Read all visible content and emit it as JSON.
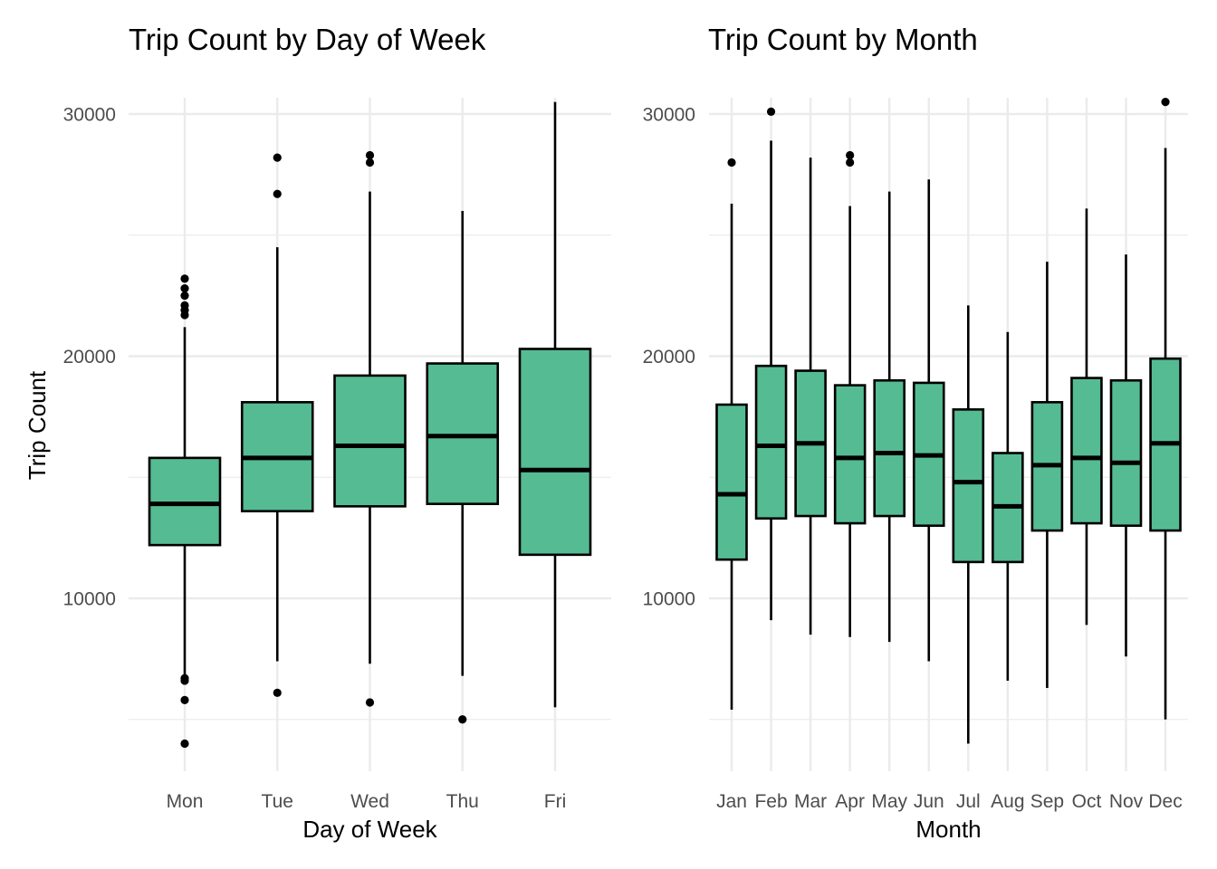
{
  "chart_data": [
    {
      "type": "boxplot",
      "title": "Trip Count by Day of Week",
      "xlabel": "Day of Week",
      "ylabel": "Trip Count",
      "ylim": [
        3600,
        31600
      ],
      "yticks": [
        10000,
        20000,
        30000
      ],
      "grid": true,
      "legend": "none",
      "fill_color": "#55BB93",
      "outline_color": "#000000",
      "categories": [
        "Mon",
        "Tue",
        "Wed",
        "Thu",
        "Fri"
      ],
      "boxes": [
        {
          "category": "Mon",
          "whisker_low": 6800,
          "q1": 12200,
          "median": 13900,
          "q3": 15800,
          "whisker_high": 21200,
          "outliers": [
            23200,
            22800,
            22500,
            22100,
            21900,
            21700,
            6700,
            6600,
            5800,
            4000
          ]
        },
        {
          "category": "Tue",
          "whisker_low": 7400,
          "q1": 13600,
          "median": 15800,
          "q3": 18100,
          "whisker_high": 24500,
          "outliers": [
            28200,
            26700,
            6100
          ]
        },
        {
          "category": "Wed",
          "whisker_low": 7300,
          "q1": 13800,
          "median": 16300,
          "q3": 19200,
          "whisker_high": 26800,
          "outliers": [
            28300,
            28000,
            5700
          ]
        },
        {
          "category": "Thu",
          "whisker_low": 6800,
          "q1": 13900,
          "median": 16700,
          "q3": 19700,
          "whisker_high": 26000,
          "outliers": [
            5000
          ]
        },
        {
          "category": "Fri",
          "whisker_low": 5500,
          "q1": 11800,
          "median": 15300,
          "q3": 20300,
          "whisker_high": 30500,
          "outliers": []
        }
      ]
    },
    {
      "type": "boxplot",
      "title": "Trip Count by Month",
      "xlabel": "Month",
      "ylabel": "",
      "ylim": [
        3600,
        31600
      ],
      "yticks": [
        10000,
        20000,
        30000
      ],
      "grid": true,
      "legend": "none",
      "fill_color": "#55BB93",
      "outline_color": "#000000",
      "categories": [
        "Jan",
        "Feb",
        "Mar",
        "Apr",
        "May",
        "Jun",
        "Jul",
        "Aug",
        "Sep",
        "Oct",
        "Nov",
        "Dec"
      ],
      "boxes": [
        {
          "category": "Jan",
          "whisker_low": 5400,
          "q1": 11600,
          "median": 14300,
          "q3": 18000,
          "whisker_high": 26300,
          "outliers": [
            28000
          ]
        },
        {
          "category": "Feb",
          "whisker_low": 9100,
          "q1": 13300,
          "median": 16300,
          "q3": 19600,
          "whisker_high": 28900,
          "outliers": [
            30100
          ]
        },
        {
          "category": "Mar",
          "whisker_low": 8500,
          "q1": 13400,
          "median": 16400,
          "q3": 19400,
          "whisker_high": 28200,
          "outliers": []
        },
        {
          "category": "Apr",
          "whisker_low": 8400,
          "q1": 13100,
          "median": 15800,
          "q3": 18800,
          "whisker_high": 26200,
          "outliers": [
            28300,
            28000
          ]
        },
        {
          "category": "May",
          "whisker_low": 8200,
          "q1": 13400,
          "median": 16000,
          "q3": 19000,
          "whisker_high": 26800,
          "outliers": []
        },
        {
          "category": "Jun",
          "whisker_low": 7400,
          "q1": 13000,
          "median": 15900,
          "q3": 18900,
          "whisker_high": 27300,
          "outliers": []
        },
        {
          "category": "Jul",
          "whisker_low": 4000,
          "q1": 11500,
          "median": 14800,
          "q3": 17800,
          "whisker_high": 22100,
          "outliers": []
        },
        {
          "category": "Aug",
          "whisker_low": 6600,
          "q1": 11500,
          "median": 13800,
          "q3": 16000,
          "whisker_high": 21000,
          "outliers": []
        },
        {
          "category": "Sep",
          "whisker_low": 6300,
          "q1": 12800,
          "median": 15500,
          "q3": 18100,
          "whisker_high": 23900,
          "outliers": []
        },
        {
          "category": "Oct",
          "whisker_low": 8900,
          "q1": 13100,
          "median": 15800,
          "q3": 19100,
          "whisker_high": 26100,
          "outliers": []
        },
        {
          "category": "Nov",
          "whisker_low": 7600,
          "q1": 13000,
          "median": 15600,
          "q3": 19000,
          "whisker_high": 24200,
          "outliers": []
        },
        {
          "category": "Dec",
          "whisker_low": 5000,
          "q1": 12800,
          "median": 16400,
          "q3": 19900,
          "whisker_high": 28600,
          "outliers": [
            30500
          ]
        }
      ]
    }
  ]
}
